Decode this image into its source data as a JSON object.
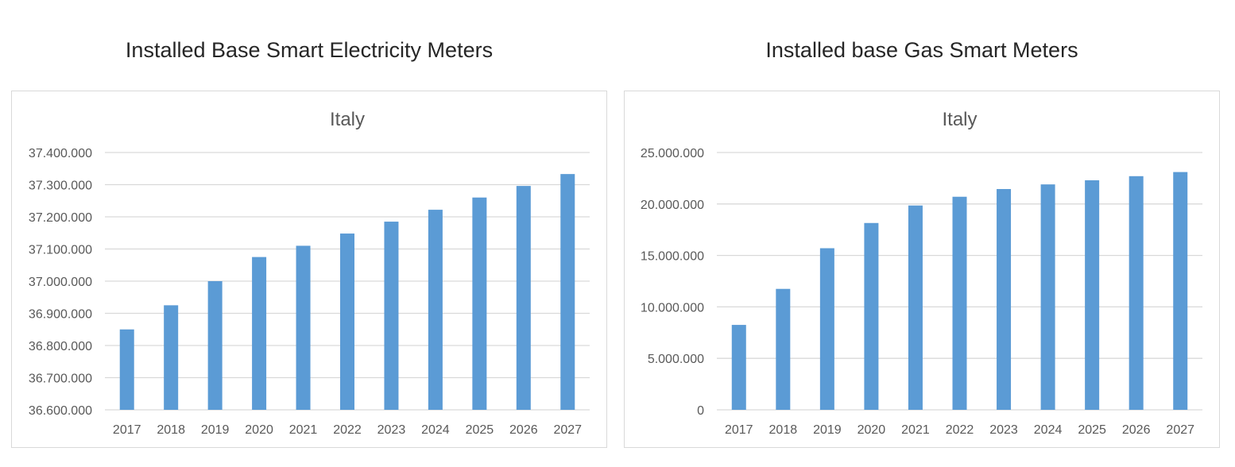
{
  "headlines": {
    "left": "Installed Base Smart Electricity Meters",
    "right": "Installed base Gas Smart Meters"
  },
  "colors": {
    "bar": "#5b9bd5",
    "grid": "#d9d9d9",
    "text": "#595959"
  },
  "chart_data": [
    {
      "type": "bar",
      "title": "Italy",
      "categories": [
        "2017",
        "2018",
        "2019",
        "2020",
        "2021",
        "2022",
        "2023",
        "2024",
        "2025",
        "2026",
        "2027"
      ],
      "values": [
        36850000,
        36925000,
        37000000,
        37075000,
        37110000,
        37148000,
        37185000,
        37222000,
        37260000,
        37296000,
        37333000
      ],
      "ylim": [
        36600000,
        37400000
      ],
      "yticks": [
        36600000,
        36700000,
        36800000,
        36900000,
        37000000,
        37100000,
        37200000,
        37300000,
        37400000
      ],
      "ytick_labels": [
        "36.600.000",
        "36.700.000",
        "36.800.000",
        "36.900.000",
        "37.000.000",
        "37.100.000",
        "37.200.000",
        "37.300.000",
        "37.400.000"
      ],
      "xlabel": "",
      "ylabel": "",
      "grid": true,
      "legend": "none"
    },
    {
      "type": "bar",
      "title": "Italy",
      "categories": [
        "2017",
        "2018",
        "2019",
        "2020",
        "2021",
        "2022",
        "2023",
        "2024",
        "2025",
        "2026",
        "2027"
      ],
      "values": [
        8250000,
        11750000,
        15700000,
        18150000,
        19850000,
        20700000,
        21450000,
        21900000,
        22300000,
        22700000,
        23100000
      ],
      "ylim": [
        0,
        25000000
      ],
      "yticks": [
        0,
        5000000,
        10000000,
        15000000,
        20000000,
        25000000
      ],
      "ytick_labels": [
        "0",
        "5.000.000",
        "10.000.000",
        "15.000.000",
        "20.000.000",
        "25.000.000"
      ],
      "xlabel": "",
      "ylabel": "",
      "grid": true,
      "legend": "none"
    }
  ]
}
